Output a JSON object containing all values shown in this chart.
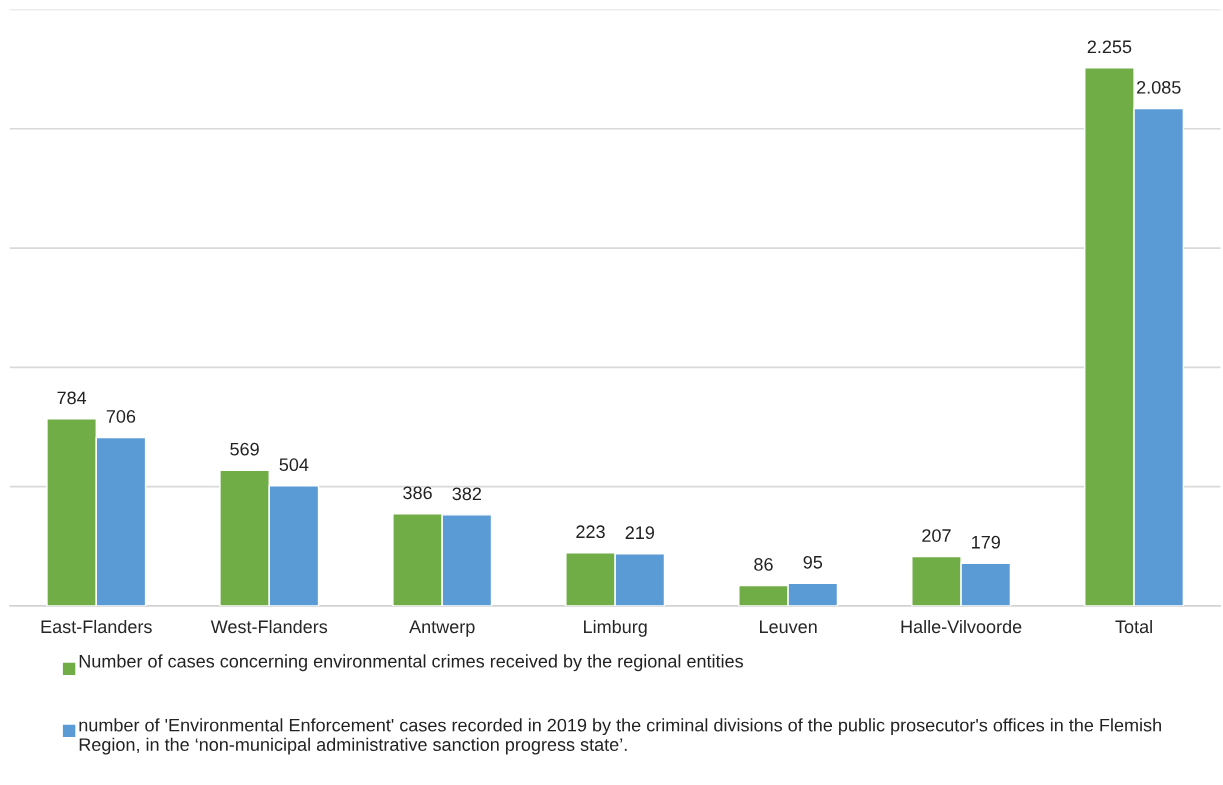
{
  "chart_data": {
    "type": "bar",
    "categories": [
      "East-Flanders",
      "West-Flanders",
      "Antwerp",
      "Limburg",
      "Leuven",
      "Halle-Vilvoorde",
      "Total"
    ],
    "series": [
      {
        "name": "Number of cases concerning environmental crimes received by the regional entities",
        "color": "#70ad47",
        "values": [
          784,
          569,
          386,
          223,
          86,
          207,
          2255
        ],
        "value_labels": [
          "784",
          "569",
          "386",
          "223",
          "86",
          "207",
          "2.255"
        ]
      },
      {
        "name": "number of 'Environmental Enforcement' cases recorded in 2019 by the criminal divisions of the public prosecutor's offices in the Flemish Region, in the ‘non-municipal administrative sanction progress state’.",
        "color": "#5b9bd5",
        "values": [
          706,
          504,
          382,
          219,
          95,
          179,
          2085
        ],
        "value_labels": [
          "706",
          "504",
          "382",
          "219",
          "95",
          "179",
          "2.085"
        ]
      }
    ],
    "ylim": [
      0,
      2500
    ],
    "yticks": [
      {
        "value": 0,
        "label": null
      },
      {
        "value": 500,
        "label": null
      },
      {
        "value": 1000,
        "label": null
      },
      {
        "value": 1500,
        "label": null
      },
      {
        "value": 2000,
        "label": null
      },
      {
        "value": 2500,
        "label": null
      }
    ],
    "grid": "y",
    "legend": "bottom"
  }
}
